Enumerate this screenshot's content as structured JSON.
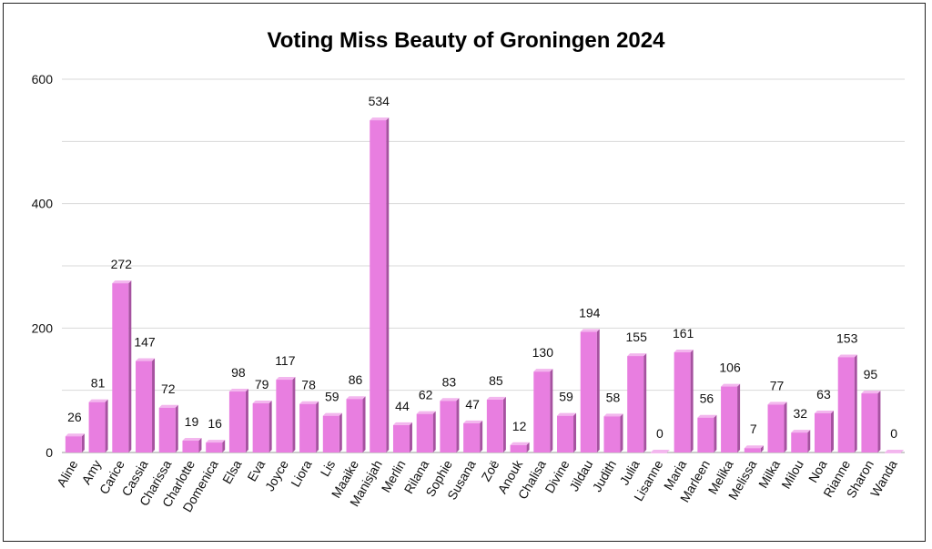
{
  "chart_data": {
    "type": "bar",
    "title": "Voting Miss Beauty of Groningen 2024",
    "xlabel": "",
    "ylabel": "",
    "ylim": [
      0,
      600
    ],
    "yticks": [
      0,
      200,
      400,
      600
    ],
    "grid": true,
    "style": "3d-bars",
    "colors": {
      "bar_face": "#e87ee0",
      "bar_side": "#a652a0",
      "bar_top": "#f3b6ee",
      "grid": "#d9d9d9"
    },
    "categories": [
      "Aline",
      "Amy",
      "Carice",
      "Cassia",
      "Charissa",
      "Charlotte",
      "Domenica",
      "Elsa",
      "Eva",
      "Joyce",
      "Liora",
      "Lis",
      "Maaike",
      "Manisjah",
      "Merlin",
      "Rilana",
      "Sophie",
      "Susana",
      "Zoë",
      "Anouk",
      "Chalisa",
      "Divine",
      "Jildau",
      "Judith",
      "Julia",
      "Lisanne",
      "Maria",
      "Marleen",
      "Melika",
      "Melissa",
      "Milka",
      "Milou",
      "Noa",
      "Rianne",
      "Sharon",
      "Wanda"
    ],
    "values": [
      26,
      81,
      272,
      147,
      72,
      19,
      16,
      98,
      79,
      117,
      78,
      59,
      86,
      534,
      44,
      62,
      83,
      47,
      85,
      12,
      130,
      59,
      194,
      58,
      155,
      0,
      161,
      56,
      106,
      7,
      77,
      32,
      63,
      153,
      95,
      0
    ]
  }
}
